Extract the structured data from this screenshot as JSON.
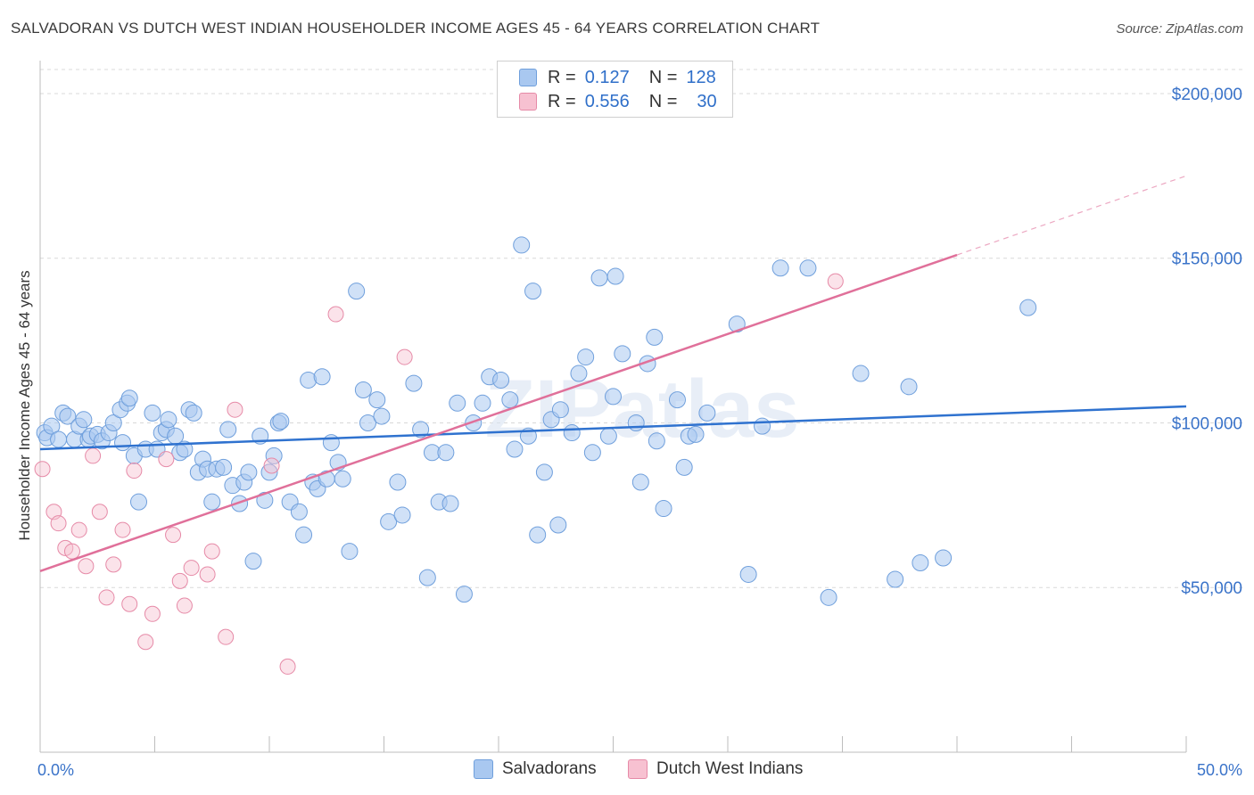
{
  "title": "SALVADORAN VS DUTCH WEST INDIAN HOUSEHOLDER INCOME AGES 45 - 64 YEARS CORRELATION CHART",
  "source": "Source: ZipAtlas.com",
  "watermark": "ZIPatlas",
  "legend": {
    "rows": [
      {
        "r_label": "R =",
        "r_value": "0.127",
        "n_label": "N =",
        "n_value": "128",
        "color": "#a9c8f0",
        "border": "#6f9fdc"
      },
      {
        "r_label": "R =",
        "r_value": "0.556",
        "n_label": "N =",
        "n_value": "30",
        "color": "#f7c1d1",
        "border": "#e68aa7"
      }
    ]
  },
  "bottom_legend": [
    "Salvadorans",
    "Dutch West Indians"
  ],
  "chart_data": {
    "type": "scatter",
    "xlabel": "",
    "ylabel": "Householder Income Ages 45 - 64 years",
    "xlim": [
      0,
      50
    ],
    "ylim": [
      0,
      210000
    ],
    "x_tick_labels": [
      "0.0%",
      "50.0%"
    ],
    "y_ticks": [
      50000,
      100000,
      150000,
      200000
    ],
    "y_tick_labels": [
      "$50,000",
      "$100,000",
      "$150,000",
      "$200,000"
    ],
    "grid": true,
    "legend_position": "top-center",
    "colors": {
      "salvadorans": "#6f9fdc",
      "salvadorans_fill": "#a9c8f0",
      "dutch": "#e68aa7",
      "dutch_fill": "#f7c1d1",
      "line_blue": "#2f72cf",
      "line_pink": "#e0709a"
    },
    "series": [
      {
        "name": "Salvadorans",
        "points": [
          [
            0.2,
            97000
          ],
          [
            0.3,
            95500
          ],
          [
            0.5,
            99000
          ],
          [
            0.8,
            95000
          ],
          [
            1.0,
            103000
          ],
          [
            1.2,
            102000
          ],
          [
            1.5,
            95000
          ],
          [
            1.7,
            99000
          ],
          [
            1.9,
            101000
          ],
          [
            2.1,
            95000
          ],
          [
            2.2,
            96000
          ],
          [
            2.5,
            96500
          ],
          [
            2.7,
            94500
          ],
          [
            3.0,
            97000
          ],
          [
            3.2,
            100000
          ],
          [
            3.5,
            104000
          ],
          [
            3.6,
            94000
          ],
          [
            3.8,
            106000
          ],
          [
            3.9,
            107500
          ],
          [
            4.1,
            90000
          ],
          [
            4.3,
            76000
          ],
          [
            4.6,
            92000
          ],
          [
            4.9,
            103000
          ],
          [
            5.1,
            92000
          ],
          [
            5.3,
            97000
          ],
          [
            5.5,
            98000
          ],
          [
            5.6,
            101000
          ],
          [
            5.9,
            96000
          ],
          [
            6.1,
            91000
          ],
          [
            6.3,
            92000
          ],
          [
            6.5,
            104000
          ],
          [
            6.7,
            103000
          ],
          [
            6.9,
            85000
          ],
          [
            7.1,
            89000
          ],
          [
            7.3,
            86000
          ],
          [
            7.5,
            76000
          ],
          [
            7.7,
            86000
          ],
          [
            8.0,
            86500
          ],
          [
            8.2,
            98000
          ],
          [
            8.4,
            81000
          ],
          [
            8.7,
            75500
          ],
          [
            8.9,
            82000
          ],
          [
            9.1,
            85000
          ],
          [
            9.3,
            58000
          ],
          [
            9.6,
            96000
          ],
          [
            9.8,
            76500
          ],
          [
            10.0,
            85000
          ],
          [
            10.2,
            90000
          ],
          [
            10.4,
            100000
          ],
          [
            10.5,
            100500
          ],
          [
            10.9,
            76000
          ],
          [
            11.3,
            73000
          ],
          [
            11.5,
            66000
          ],
          [
            11.7,
            113000
          ],
          [
            11.9,
            82000
          ],
          [
            12.1,
            80000
          ],
          [
            12.3,
            114000
          ],
          [
            12.5,
            83000
          ],
          [
            12.7,
            94000
          ],
          [
            13.0,
            88000
          ],
          [
            13.2,
            83000
          ],
          [
            13.5,
            61000
          ],
          [
            13.8,
            140000
          ],
          [
            14.1,
            110000
          ],
          [
            14.3,
            100000
          ],
          [
            14.7,
            107000
          ],
          [
            14.9,
            102000
          ],
          [
            15.2,
            70000
          ],
          [
            15.6,
            82000
          ],
          [
            15.8,
            72000
          ],
          [
            16.3,
            112000
          ],
          [
            16.6,
            98000
          ],
          [
            16.9,
            53000
          ],
          [
            17.1,
            91000
          ],
          [
            17.4,
            76000
          ],
          [
            17.7,
            91000
          ],
          [
            17.9,
            75500
          ],
          [
            18.2,
            106000
          ],
          [
            18.5,
            48000
          ],
          [
            18.9,
            100000
          ],
          [
            19.3,
            106000
          ],
          [
            19.6,
            114000
          ],
          [
            20.1,
            113000
          ],
          [
            20.5,
            107000
          ],
          [
            20.7,
            92000
          ],
          [
            21.0,
            154000
          ],
          [
            21.3,
            96000
          ],
          [
            21.5,
            140000
          ],
          [
            21.7,
            66000
          ],
          [
            22.0,
            85000
          ],
          [
            22.3,
            101000
          ],
          [
            22.6,
            69000
          ],
          [
            22.7,
            104000
          ],
          [
            23.2,
            97000
          ],
          [
            23.5,
            115000
          ],
          [
            23.8,
            120000
          ],
          [
            24.1,
            91000
          ],
          [
            24.4,
            144000
          ],
          [
            24.8,
            96000
          ],
          [
            25.0,
            108000
          ],
          [
            25.1,
            144500
          ],
          [
            25.4,
            121000
          ],
          [
            26.0,
            100000
          ],
          [
            26.2,
            82000
          ],
          [
            26.5,
            118000
          ],
          [
            26.8,
            126000
          ],
          [
            26.9,
            94500
          ],
          [
            27.2,
            74000
          ],
          [
            27.8,
            107000
          ],
          [
            28.1,
            86500
          ],
          [
            28.3,
            96000
          ],
          [
            28.6,
            96500
          ],
          [
            29.1,
            103000
          ],
          [
            30.4,
            130000
          ],
          [
            30.9,
            54000
          ],
          [
            31.5,
            99000
          ],
          [
            32.3,
            147000
          ],
          [
            33.5,
            147000
          ],
          [
            34.4,
            47000
          ],
          [
            35.8,
            115000
          ],
          [
            37.3,
            52500
          ],
          [
            37.9,
            111000
          ],
          [
            38.4,
            57500
          ],
          [
            39.4,
            59000
          ],
          [
            43.1,
            135000
          ]
        ]
      },
      {
        "name": "Dutch West Indians",
        "points": [
          [
            0.1,
            86000
          ],
          [
            0.6,
            73000
          ],
          [
            0.8,
            69500
          ],
          [
            1.1,
            62000
          ],
          [
            1.4,
            61000
          ],
          [
            1.7,
            67500
          ],
          [
            2.0,
            56500
          ],
          [
            2.3,
            90000
          ],
          [
            2.6,
            73000
          ],
          [
            2.9,
            47000
          ],
          [
            3.2,
            57000
          ],
          [
            3.6,
            67500
          ],
          [
            3.9,
            45000
          ],
          [
            4.1,
            85500
          ],
          [
            4.6,
            33500
          ],
          [
            4.9,
            42000
          ],
          [
            5.5,
            89000
          ],
          [
            5.8,
            66000
          ],
          [
            6.1,
            52000
          ],
          [
            6.3,
            44500
          ],
          [
            6.6,
            56000
          ],
          [
            7.3,
            54000
          ],
          [
            7.5,
            61000
          ],
          [
            8.1,
            35000
          ],
          [
            8.5,
            104000
          ],
          [
            10.1,
            87000
          ],
          [
            10.8,
            26000
          ],
          [
            12.9,
            133000
          ],
          [
            15.9,
            120000
          ],
          [
            34.7,
            143000
          ]
        ]
      }
    ],
    "trend_lines": [
      {
        "name": "Salvadorans",
        "x": [
          0,
          50
        ],
        "y": [
          92000,
          105000
        ]
      },
      {
        "name": "Dutch West Indians",
        "x": [
          0,
          40
        ],
        "y": [
          55000,
          151000
        ],
        "dashed_extension_to": [
          50,
          175000
        ]
      }
    ]
  }
}
